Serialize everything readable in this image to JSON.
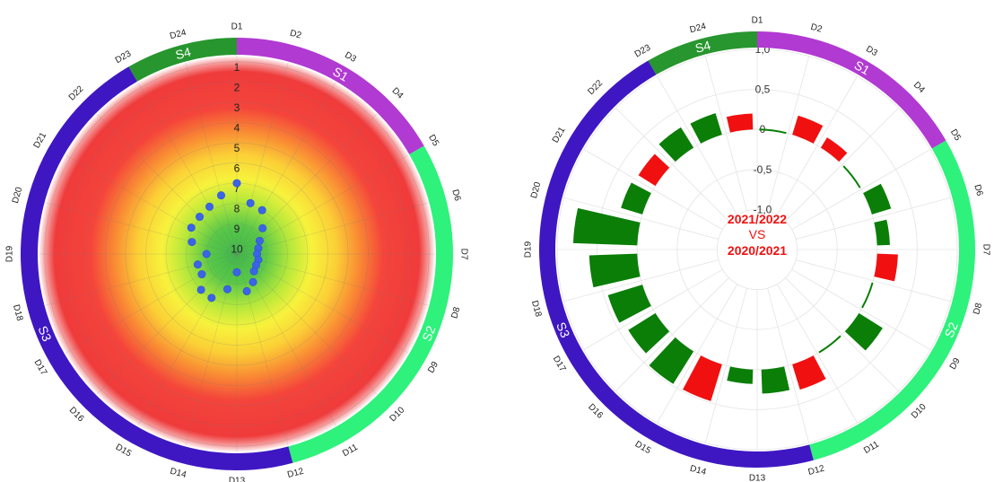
{
  "chart_data": [
    {
      "type": "scatter",
      "polar": true,
      "days": [
        "D1",
        "D2",
        "D3",
        "D4",
        "D5",
        "D6",
        "D7",
        "D8",
        "D9",
        "D10",
        "D11",
        "D12",
        "D13",
        "D14",
        "D15",
        "D16",
        "D17",
        "D18",
        "D19",
        "D20",
        "D21",
        "D22",
        "D23",
        "D24"
      ],
      "seasons": [
        {
          "label": "S1",
          "from": 0,
          "to": 4,
          "color": "#b13ad2"
        },
        {
          "label": "S2",
          "from": 4,
          "to": 11,
          "color": "#2ef27b"
        },
        {
          "label": "S3",
          "from": 11,
          "to": 22,
          "color": "#3f17c2"
        },
        {
          "label": "S4",
          "from": 22,
          "to": 24,
          "color": "#27962e"
        }
      ],
      "radial_ticks": [
        "1",
        "2",
        "3",
        "4",
        "5",
        "6",
        "7",
        "8",
        "9",
        "10"
      ],
      "radial_range": [
        1,
        10.5
      ],
      "series": [
        {
          "values": [
            7.0,
            7.9,
            8.0,
            8.7,
            9.2,
            9.4,
            9.5,
            9.4,
            9.4,
            9.3,
            8.9,
            8.6,
            9.6,
            8.7,
            8.0,
            8.0,
            8.5,
            8.5,
            9.0,
            8.2,
            7.9,
            7.9,
            7.8,
            7.5
          ]
        }
      ]
    },
    {
      "type": "bar",
      "polar": true,
      "days": [
        "D1",
        "D2",
        "D3",
        "D4",
        "D5",
        "D6",
        "D7",
        "D8",
        "D9",
        "D10",
        "D11",
        "D12",
        "D13",
        "D14",
        "D15",
        "D16",
        "D17",
        "D18",
        "D19",
        "D20",
        "D21",
        "D22",
        "D23",
        "D24"
      ],
      "seasons": [
        {
          "label": "S1",
          "from": 0,
          "to": 4,
          "color": "#b13ad2"
        },
        {
          "label": "S2",
          "from": 4,
          "to": 11,
          "color": "#2ef27b"
        },
        {
          "label": "S3",
          "from": 11,
          "to": 22,
          "color": "#3f17c2"
        },
        {
          "label": "S4",
          "from": 22,
          "to": 24,
          "color": "#27962e"
        }
      ],
      "radial_ticks": [
        "1,0",
        "0,5",
        "0",
        "-0,5",
        "-1,0"
      ],
      "ylim": [
        -1.5,
        1.0
      ],
      "values": [
        0.01,
        0.25,
        0.15,
        0.01,
        0.25,
        0.16,
        0.26,
        0.01,
        0.35,
        0.02,
        0.33,
        0.3,
        0.18,
        0.48,
        0.48,
        0.4,
        0.45,
        0.6,
        0.8,
        0.28,
        0.25,
        0.3,
        0.28,
        0.2
      ],
      "colors": [
        "#0a7e07",
        "#f11010",
        "#f11010",
        "#0a7e07",
        "#0a7e07",
        "#0a7e07",
        "#f11010",
        "#0a7e07",
        "#0a7e07",
        "#0a7e07",
        "#f11010",
        "#0a7e07",
        "#0a7e07",
        "#f11010",
        "#0a7e07",
        "#0a7e07",
        "#0a7e07",
        "#0a7e07",
        "#0a7e07",
        "#0a7e07",
        "#f11010",
        "#0a7e07",
        "#0a7e07",
        "#f11010"
      ],
      "center_text": [
        "2021/2022",
        "VS",
        "2020/2021"
      ],
      "center_color": "#f11010"
    }
  ]
}
